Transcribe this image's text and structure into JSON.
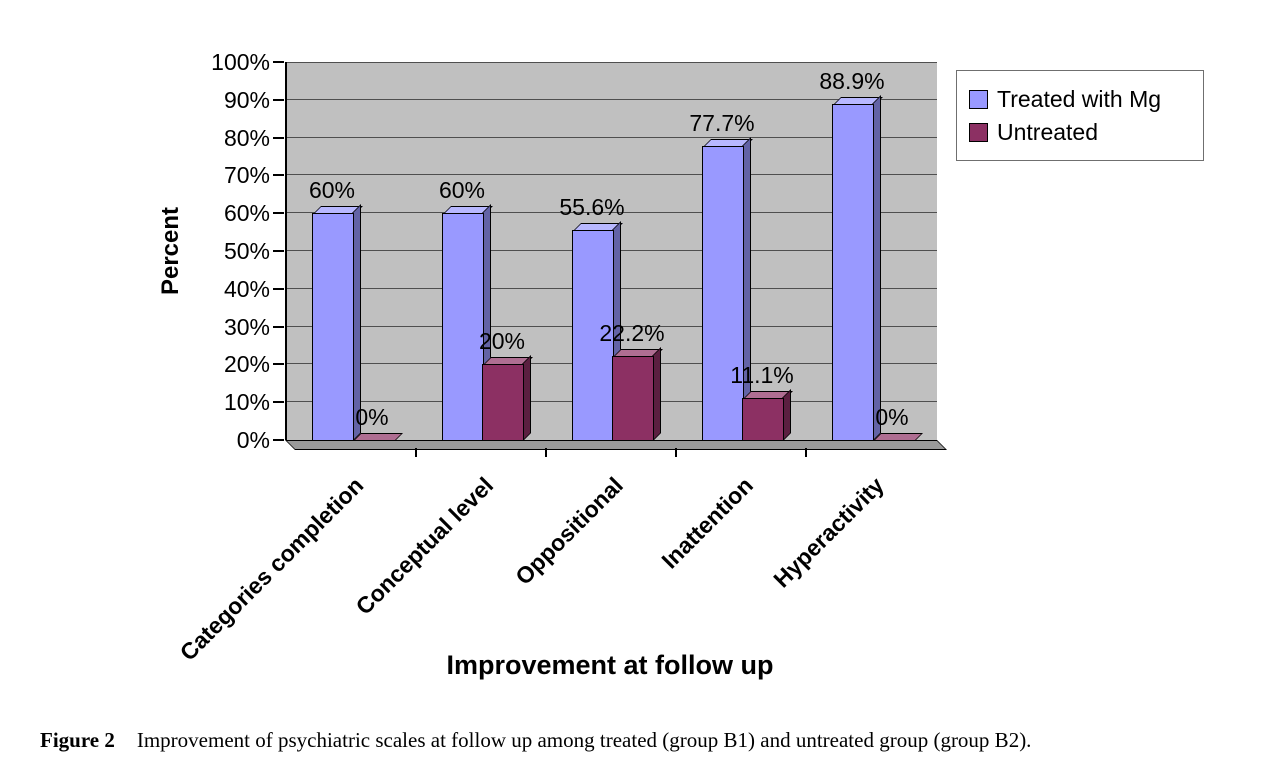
{
  "figure": {
    "caption_label": "Figure 2",
    "caption_text": "Improvement of psychiatric scales at follow up among treated (group B1) and untreated group (group B2)."
  },
  "chart_data": {
    "type": "bar",
    "style": "3d-clustered-column",
    "title": "",
    "xlabel": "Improvement at follow up",
    "ylabel": "Percent",
    "ylim": [
      0,
      100
    ],
    "ytick_step": 10,
    "yticks": [
      "0%",
      "10%",
      "20%",
      "30%",
      "40%",
      "50%",
      "60%",
      "70%",
      "80%",
      "90%",
      "100%"
    ],
    "categories": [
      "Categories completion",
      "Conceptual level",
      "Oppositional",
      "Inattention",
      "Hyperactivity"
    ],
    "series": [
      {
        "name": "Treated with Mg",
        "color": "#9999ff",
        "values": [
          60,
          60,
          55.6,
          77.7,
          88.9
        ],
        "labels": [
          "60%",
          "60%",
          "55.6%",
          "77.7%",
          "88.9%"
        ]
      },
      {
        "name": "Untreated",
        "color": "#8c3063",
        "values": [
          0,
          20,
          22.2,
          11.1,
          0
        ],
        "labels": [
          "0%",
          "20%",
          "22.2%",
          "11.1%",
          "0%"
        ]
      }
    ],
    "legend": {
      "position": "top-right",
      "entries": [
        "Treated with Mg",
        "Untreated"
      ]
    },
    "grid": true,
    "plot_background": "#c0c0c0"
  }
}
